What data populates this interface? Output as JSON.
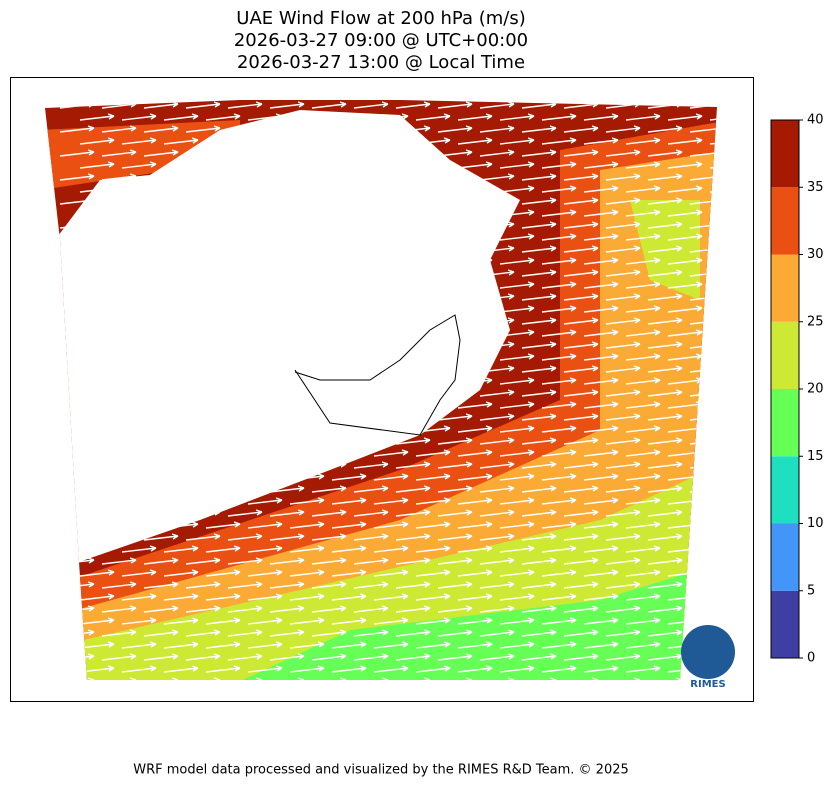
{
  "header": {
    "title_lines": [
      "UAE Wind Flow at 200 hPa (m/s)",
      "2026-03-27 09:00 @ UTC+00:00",
      "2026-03-27 13:00 @ Local Time"
    ]
  },
  "colorbar": {
    "lim": [
      0,
      40
    ],
    "ticks": [
      0,
      5,
      10,
      15,
      20,
      25,
      30,
      35,
      40
    ],
    "colors": [
      "#3f3fa3",
      "#4396f7",
      "#1ee0c0",
      "#66ff55",
      "#cde934",
      "#fbaa35",
      "#ea5012",
      "#a51a03"
    ]
  },
  "logo": {
    "text": "RIMES"
  },
  "footer": {
    "text": "WRF model data processed and visualized by the RIMES R&D Team. © 2025"
  }
}
